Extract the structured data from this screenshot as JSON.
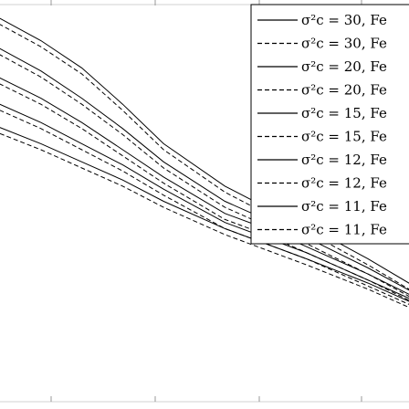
{
  "chart_data": {
    "type": "line",
    "title": "",
    "xlabel": "",
    "ylabel": "",
    "xlim": [
      0,
      1
    ],
    "ylim": [
      0,
      1
    ],
    "grid": false,
    "legend_position": "top-right",
    "series": [
      {
        "name": "σ²c = 30, Fe",
        "line_style": "solid",
        "color": "#000000",
        "points": [
          [
            -0.05,
            1.0
          ],
          [
            0.1,
            0.89
          ],
          [
            0.2,
            0.8
          ],
          [
            0.3,
            0.68
          ],
          [
            0.4,
            0.55
          ],
          [
            0.55,
            0.41
          ],
          [
            0.65,
            0.34
          ],
          [
            0.75,
            0.28
          ],
          [
            0.9,
            0.17
          ],
          [
            1.05,
            0.05
          ]
        ]
      },
      {
        "name": "σ²c = 30, Fe",
        "line_style": "dashed",
        "color": "#000000",
        "points": [
          [
            -0.05,
            0.98
          ],
          [
            0.1,
            0.87
          ],
          [
            0.2,
            0.78
          ],
          [
            0.3,
            0.66
          ],
          [
            0.4,
            0.53
          ],
          [
            0.55,
            0.39
          ],
          [
            0.65,
            0.32
          ],
          [
            0.75,
            0.26
          ],
          [
            0.9,
            0.15
          ],
          [
            1.05,
            0.03
          ]
        ]
      },
      {
        "name": "σ²c = 20, Fe",
        "line_style": "solid",
        "color": "#000000",
        "points": [
          [
            -0.05,
            0.9
          ],
          [
            0.1,
            0.79
          ],
          [
            0.2,
            0.7
          ],
          [
            0.3,
            0.6
          ],
          [
            0.4,
            0.49
          ],
          [
            0.55,
            0.36
          ],
          [
            0.65,
            0.3
          ],
          [
            0.75,
            0.24
          ],
          [
            0.9,
            0.14
          ],
          [
            1.05,
            0.03
          ]
        ]
      },
      {
        "name": "σ²c = 20, Fe",
        "line_style": "dashed",
        "color": "#000000",
        "points": [
          [
            -0.05,
            0.88
          ],
          [
            0.1,
            0.77
          ],
          [
            0.2,
            0.68
          ],
          [
            0.3,
            0.58
          ],
          [
            0.4,
            0.47
          ],
          [
            0.55,
            0.34
          ],
          [
            0.65,
            0.28
          ],
          [
            0.75,
            0.22
          ],
          [
            0.9,
            0.12
          ],
          [
            1.05,
            0.01
          ]
        ]
      },
      {
        "name": "σ²c = 15, Fe",
        "line_style": "solid",
        "color": "#000000",
        "points": [
          [
            -0.05,
            0.8
          ],
          [
            0.1,
            0.7
          ],
          [
            0.2,
            0.62
          ],
          [
            0.3,
            0.53
          ],
          [
            0.4,
            0.44
          ],
          [
            0.55,
            0.32
          ],
          [
            0.65,
            0.27
          ],
          [
            0.75,
            0.21
          ],
          [
            0.9,
            0.12
          ],
          [
            1.05,
            0.02
          ]
        ]
      },
      {
        "name": "σ²c = 15, Fe",
        "line_style": "dashed",
        "color": "#000000",
        "points": [
          [
            -0.05,
            0.78
          ],
          [
            0.1,
            0.68
          ],
          [
            0.2,
            0.6
          ],
          [
            0.3,
            0.51
          ],
          [
            0.4,
            0.42
          ],
          [
            0.55,
            0.3
          ],
          [
            0.65,
            0.25
          ],
          [
            0.75,
            0.19
          ],
          [
            0.9,
            0.1
          ],
          [
            1.05,
            0.0
          ]
        ]
      },
      {
        "name": "σ²c = 12, Fe",
        "line_style": "solid",
        "color": "#000000",
        "points": [
          [
            -0.05,
            0.71
          ],
          [
            0.1,
            0.62
          ],
          [
            0.2,
            0.55
          ],
          [
            0.3,
            0.48
          ],
          [
            0.4,
            0.4
          ],
          [
            0.55,
            0.29
          ],
          [
            0.65,
            0.24
          ],
          [
            0.75,
            0.19
          ],
          [
            0.9,
            0.1
          ],
          [
            1.05,
            0.01
          ]
        ]
      },
      {
        "name": "σ²c = 12, Fe",
        "line_style": "dashed",
        "color": "#000000",
        "points": [
          [
            -0.05,
            0.69
          ],
          [
            0.1,
            0.6
          ],
          [
            0.2,
            0.53
          ],
          [
            0.3,
            0.46
          ],
          [
            0.4,
            0.38
          ],
          [
            0.55,
            0.27
          ],
          [
            0.65,
            0.22
          ],
          [
            0.75,
            0.17
          ],
          [
            0.9,
            0.08
          ],
          [
            1.05,
            -0.01
          ]
        ]
      },
      {
        "name": "σ²c = 11, Fe",
        "line_style": "solid",
        "color": "#000000",
        "points": [
          [
            -0.05,
            0.63
          ],
          [
            0.1,
            0.55
          ],
          [
            0.2,
            0.49
          ],
          [
            0.3,
            0.43
          ],
          [
            0.4,
            0.36
          ],
          [
            0.55,
            0.27
          ],
          [
            0.65,
            0.22
          ],
          [
            0.75,
            0.17
          ],
          [
            0.9,
            0.09
          ],
          [
            1.05,
            0.0
          ]
        ]
      },
      {
        "name": "σ²c = 11, Fe",
        "line_style": "dashed",
        "color": "#000000",
        "points": [
          [
            -0.05,
            0.61
          ],
          [
            0.1,
            0.53
          ],
          [
            0.2,
            0.47
          ],
          [
            0.3,
            0.41
          ],
          [
            0.4,
            0.34
          ],
          [
            0.55,
            0.25
          ],
          [
            0.65,
            0.2
          ],
          [
            0.75,
            0.15
          ],
          [
            0.9,
            0.07
          ],
          [
            1.05,
            -0.02
          ]
        ]
      }
    ]
  }
}
